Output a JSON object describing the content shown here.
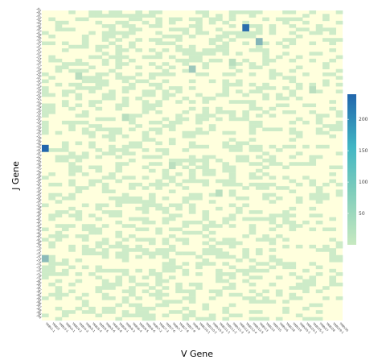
{
  "chart_data": {
    "type": "heatmap",
    "title": "",
    "xlabel": "V Gene",
    "ylabel": "J Gene",
    "x_categories": [
      "TRBV1-1",
      "TRBV2",
      "TRBV3-1",
      "TRBV4-1",
      "TRBV4-2",
      "TRBV4-3",
      "TRBV5-1",
      "TRBV5-4",
      "TRBV5-5",
      "TRBV5-6",
      "TRBV5-8",
      "TRBV6-1",
      "TRBV6-2",
      "TRBV6-4",
      "TRBV6-5",
      "TRBV6-6",
      "TRBV7-2",
      "TRBV7-3",
      "TRBV7-6",
      "TRBV7-7",
      "TRBV7-8",
      "TRBV7-9",
      "TRBV9",
      "TRBV10-1",
      "TRBV10-2",
      "TRBV10-3",
      "TRBV11-1",
      "TRBV11-2",
      "TRBV11-3",
      "TRBV12-3",
      "TRBV12-4",
      "TRBV12-5",
      "TRBV13",
      "TRBV14",
      "TRBV15",
      "TRBV16",
      "TRBV18",
      "TRBV19",
      "TRBV20-1",
      "TRBV24-1",
      "TRBV25-1",
      "TRBV27",
      "TRBV28",
      "TRBV29-1",
      "TRBV30"
    ],
    "y_categories": [
      "J01",
      "J02",
      "J03",
      "J04",
      "J05",
      "J06",
      "J07",
      "J08",
      "J09",
      "J10",
      "J11",
      "J12",
      "J13",
      "J14",
      "J15",
      "J16",
      "J17",
      "J18",
      "J19",
      "J20",
      "J21",
      "J22",
      "J23",
      "J24",
      "J25",
      "J26",
      "J27",
      "J28",
      "J29",
      "J30",
      "J31",
      "J32",
      "J33",
      "J34",
      "J35",
      "J36",
      "J37",
      "J38",
      "J39",
      "J40",
      "J41",
      "J42",
      "J43",
      "J44",
      "J45",
      "J46",
      "J47",
      "J48",
      "J49",
      "J50",
      "J51",
      "J52",
      "J53",
      "J54",
      "J55",
      "J56",
      "J57",
      "J58",
      "J59",
      "J60",
      "J61",
      "J62",
      "J63",
      "J64",
      "J65",
      "J66",
      "J67",
      "J68",
      "J69",
      "J70",
      "J71",
      "J72",
      "J73",
      "J74",
      "J75",
      "J76",
      "J77",
      "J78",
      "J79",
      "J80",
      "J81",
      "J82",
      "J83",
      "J84",
      "J85",
      "J86",
      "J87",
      "J88",
      "J89",
      "J90"
    ],
    "value_range": [
      0,
      240
    ],
    "scale": {
      "type": "sequential",
      "colors": [
        "#ffffdd",
        "#c7e9c0",
        "#2166ac"
      ],
      "ticks": [
        50,
        100,
        150,
        200
      ]
    },
    "cells": [
      {
        "x": 30,
        "y": 4,
        "v": 225
      },
      {
        "x": 32,
        "y": 8,
        "v": 95
      },
      {
        "x": 0,
        "y": 39,
        "v": 240
      },
      {
        "x": 0,
        "y": 71,
        "v": 85
      },
      {
        "x": 22,
        "y": 16,
        "v": 60
      },
      {
        "x": 28,
        "y": 14,
        "v": 20
      },
      {
        "x": 5,
        "y": 18,
        "v": 22
      },
      {
        "x": 40,
        "y": 22,
        "v": 18
      },
      {
        "x": 12,
        "y": 30,
        "v": 20
      },
      {
        "x": 19,
        "y": 44,
        "v": 18
      },
      {
        "x": 26,
        "y": 52,
        "v": 20
      }
    ],
    "grid": false,
    "legend_position": "right"
  }
}
